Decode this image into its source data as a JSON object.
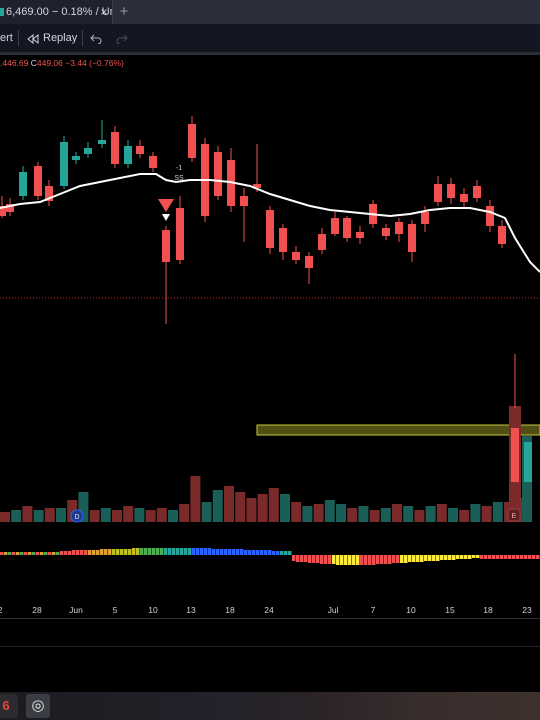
{
  "tab": {
    "title": "6,469.00 − 0.18% / Um",
    "close_glyph": "×",
    "new_tab_glyph": "+"
  },
  "toolbar": {
    "alert_label": "ert",
    "replay_icon": "rewind-icon",
    "replay_label": "Replay",
    "undo_icon": "undo-icon",
    "redo_icon": "redo-icon"
  },
  "legend": {
    "partial": ".446.69",
    "close_label": "C",
    "close_value": "449.06",
    "change": "−3.44 (−0.76%)"
  },
  "annotations": {
    "signal_top": "-1",
    "signal_bottom": "SS",
    "earnings_badge_1": "E",
    "earnings_badge_2": "E",
    "dividend_badge": "D"
  },
  "colors": {
    "up": "#26a69a",
    "down": "#f0504f",
    "ma_line": "#ffffff",
    "volume_up": "#1b5e57",
    "volume_down": "#7b2a2a",
    "support_line": "#c62828",
    "zone_fill": "#6b6a1b",
    "zone_border": "#c9c73c",
    "background": "#000000",
    "axis_text": "#d1d4dc"
  },
  "chart_data": {
    "type": "candlestick",
    "x_tick_labels": [
      "2",
      "28",
      "Jun",
      "5",
      "10",
      "13",
      "18",
      "24",
      "Jul",
      "7",
      "10",
      "15",
      "18",
      "23"
    ],
    "ohlc_visible_portion": {
      "close": 449.06,
      "change": -3.44,
      "change_pct": -0.76
    },
    "indicators": [
      "moving average (white line)",
      "volume histogram",
      "momentum ribbon"
    ]
  },
  "taskbar": {
    "app1_icon": "app-logo-icon",
    "app1_glyph": "6",
    "app2_icon": "camera-aperture-icon",
    "app2_glyph": "◎"
  }
}
